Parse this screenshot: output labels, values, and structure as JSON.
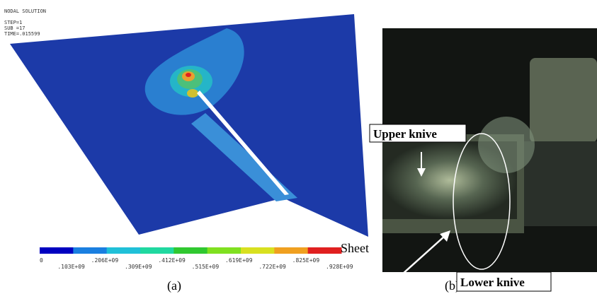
{
  "panel_a": {
    "header": [
      "NODAL SOLUTION",
      "STEP=1",
      "SUB =17",
      "TIME=.015599"
    ],
    "colorbar_labels": [
      "0",
      ".103E+09",
      ".206E+09",
      ".309E+09",
      ".412E+09",
      ".515E+09",
      ".619E+09",
      ".722E+09",
      ".825E+09",
      ".928E+09"
    ],
    "sheet_label": "Sheet",
    "caption": "(a)"
  },
  "panel_b": {
    "upper_label": "Upper knive",
    "lower_label": "Lower knive",
    "caption": "(b)"
  }
}
